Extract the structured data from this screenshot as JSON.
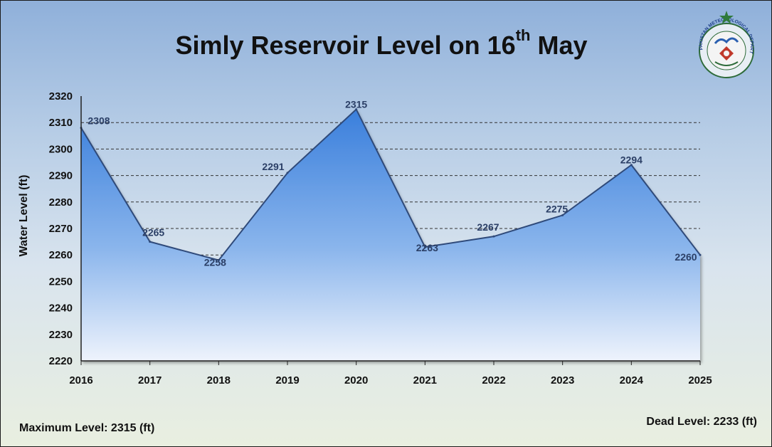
{
  "header": {
    "title_main": "Simly Reservoir Level on 16",
    "title_sup": "th",
    "title_end": " May"
  },
  "emblem": {
    "icon": "pakistan-meteorological-department-seal-icon",
    "text": "PAKISTAN METEOROLOGICAL DEPARTMENT"
  },
  "notes": {
    "max_level": "Maximum Level: 2315 (ft)",
    "dead_level": "Dead Level: 2233 (ft)"
  },
  "chart_data": {
    "type": "area",
    "ylabel": "Water Level (ft)",
    "xlabel": "",
    "categories": [
      "2016",
      "2017",
      "2018",
      "2019",
      "2020",
      "2021",
      "2022",
      "2023",
      "2024",
      "2025"
    ],
    "values": [
      2308,
      2265,
      2258,
      2291,
      2315,
      2263,
      2267,
      2275,
      2294,
      2260
    ],
    "data_labels": [
      "2308",
      "2265",
      "2258",
      "2291",
      "2315",
      "2263",
      "2267",
      "2275",
      "2294",
      "2260"
    ],
    "ylim": [
      2220,
      2320
    ],
    "yticks": [
      "2220",
      "2230",
      "2240",
      "2250",
      "2260",
      "2270",
      "2280",
      "2290",
      "2300",
      "2310",
      "2320"
    ],
    "grid": "dashed horizontal",
    "colors": {
      "area_top": "#3f86df",
      "area_bottom": "#e3ecfa",
      "line": "#2f4a7a"
    }
  }
}
